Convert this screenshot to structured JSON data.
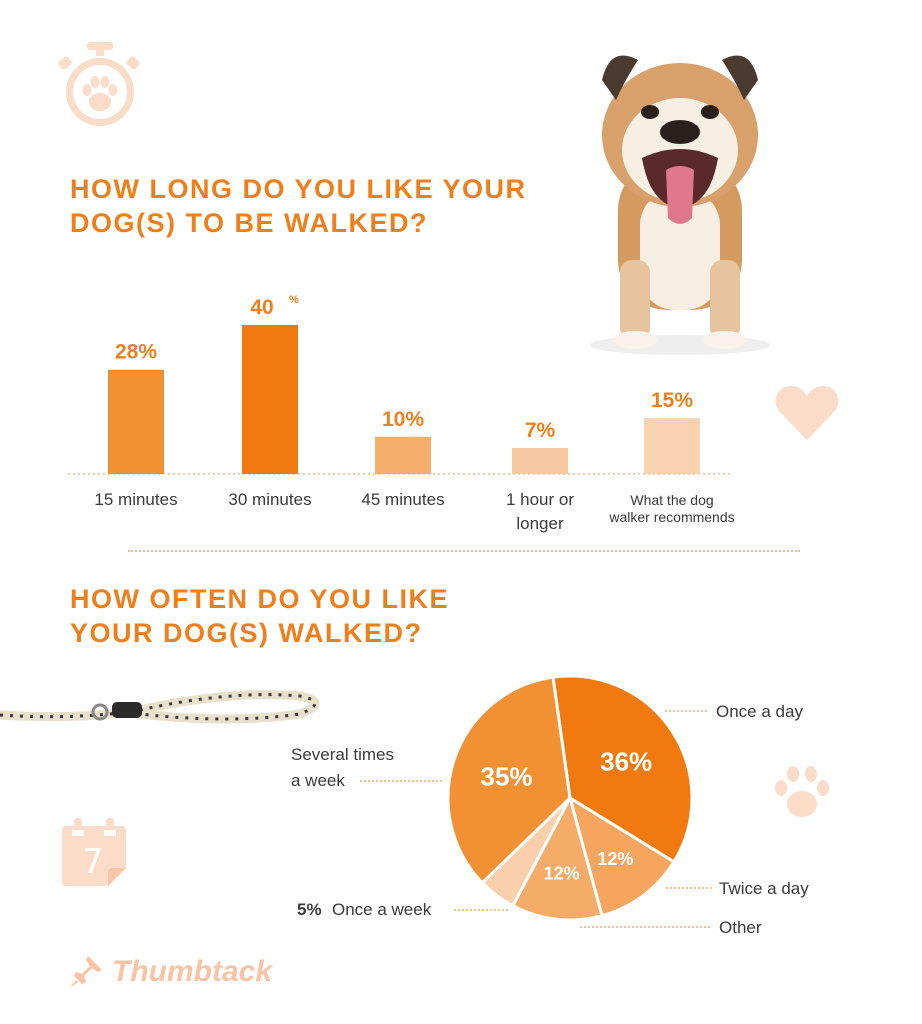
{
  "section1": {
    "title_line1": "HOW LONG DO YOU LIKE YOUR",
    "title_line2": "DOG(S) TO BE WALKED?"
  },
  "section2": {
    "title_line1": "HOW OFTEN DO YOU LIKE",
    "title_line2": "YOUR DOG(S) WALKED?"
  },
  "brand": {
    "name": "Thumbtack",
    "color": "#f9c3a4"
  },
  "colors": {
    "accent": "#f07f1b",
    "bar_colors": [
      "#f29134",
      "#f07a0f",
      "#f6ae6c",
      "#f8c9a3",
      "#f9d2b1"
    ],
    "decor": "#fbdcc8"
  },
  "icons": [
    "stopwatch-paw-icon",
    "bulldog-photo",
    "heart-icon",
    "leash-photo",
    "paw-icon",
    "calendar-icon",
    "thumbtack-pin-icon"
  ],
  "calendar_day": "7",
  "chart_data": [
    {
      "type": "bar",
      "title": "HOW LONG DO YOU LIKE YOUR DOG(S) TO BE WALKED?",
      "categories": [
        "15 minutes",
        "30 minutes",
        "45 minutes",
        "1 hour or longer",
        "What the dog walker recommends"
      ],
      "category_lines": [
        [
          "15 minutes"
        ],
        [
          "30 minutes"
        ],
        [
          "45 minutes"
        ],
        [
          "1 hour or",
          "longer"
        ],
        [
          "What the dog",
          "walker recommends"
        ]
      ],
      "values": [
        28,
        40,
        10,
        7,
        15
      ],
      "value_labels": [
        "28%",
        "40",
        "10%",
        "7%",
        "15%"
      ],
      "unit": "%",
      "ylim": [
        0,
        40
      ],
      "grid": false
    },
    {
      "type": "pie",
      "title": "HOW OFTEN DO YOU LIKE YOUR DOG(S) WALKED?",
      "slices": [
        {
          "label": "Once a day",
          "value": 36,
          "display": "36%",
          "color": "#f07a0f"
        },
        {
          "label": "Twice a day",
          "value": 12,
          "display": "12%",
          "color": "#f6a55f"
        },
        {
          "label": "Other",
          "value": 12,
          "display": "12%",
          "color": "#f5ac68"
        },
        {
          "label": "Once a week",
          "value": 5,
          "display": "5%",
          "color": "#f9cfac"
        },
        {
          "label": "Several times a week",
          "value": 35,
          "display": "35%",
          "color": "#f29134"
        }
      ],
      "external_labels": {
        "once_a_day": "Once a day",
        "several_line1": "Several times",
        "several_line2": "a week",
        "twice_a_day": "Twice a day",
        "other": "Other",
        "once_a_week_pct": "5%",
        "once_a_week": "Once a week"
      }
    }
  ]
}
